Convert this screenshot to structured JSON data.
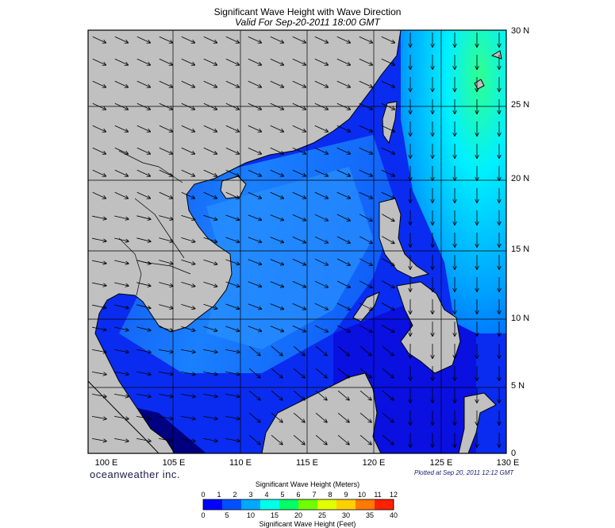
{
  "title": "Significant Wave Height with Wave Direction",
  "subtitle": "Valid For Sep-20-2011 18:00 GMT",
  "lon_labels": [
    "100 E",
    "105 E",
    "110 E",
    "115 E",
    "120 E",
    "125 E",
    "130 E"
  ],
  "lat_labels": [
    "30 N",
    "25 N",
    "20 N",
    "15 N",
    "10 N",
    "5 N",
    "0"
  ],
  "brand": "oceanweather inc.",
  "plotted": "Plotted at Sep 20, 2011 12:12 GMT",
  "colorbar": {
    "title_m": "Significant Wave Height (Meters)",
    "title_ft": "Significant Wave Height (Feet)",
    "meters_ticks": [
      "0",
      "1",
      "2",
      "3",
      "4",
      "5",
      "6",
      "7",
      "8",
      "9",
      "10",
      "11",
      "12"
    ],
    "feet_ticks": [
      "0",
      "5",
      "10",
      "15",
      "20",
      "25",
      "30",
      "35",
      "40"
    ],
    "colors": [
      "#0000ff",
      "#0050ff",
      "#00a8ff",
      "#00ffe8",
      "#00ff66",
      "#70ff00",
      "#e0ff00",
      "#ffd000",
      "#ff7a00",
      "#ff2000"
    ]
  },
  "colors": {
    "land": "#c0c0c0",
    "grid": "#000000",
    "low_wave": "#1030f0",
    "mid_wave": "#1870f8",
    "high_wave": "#00d8ff"
  }
}
